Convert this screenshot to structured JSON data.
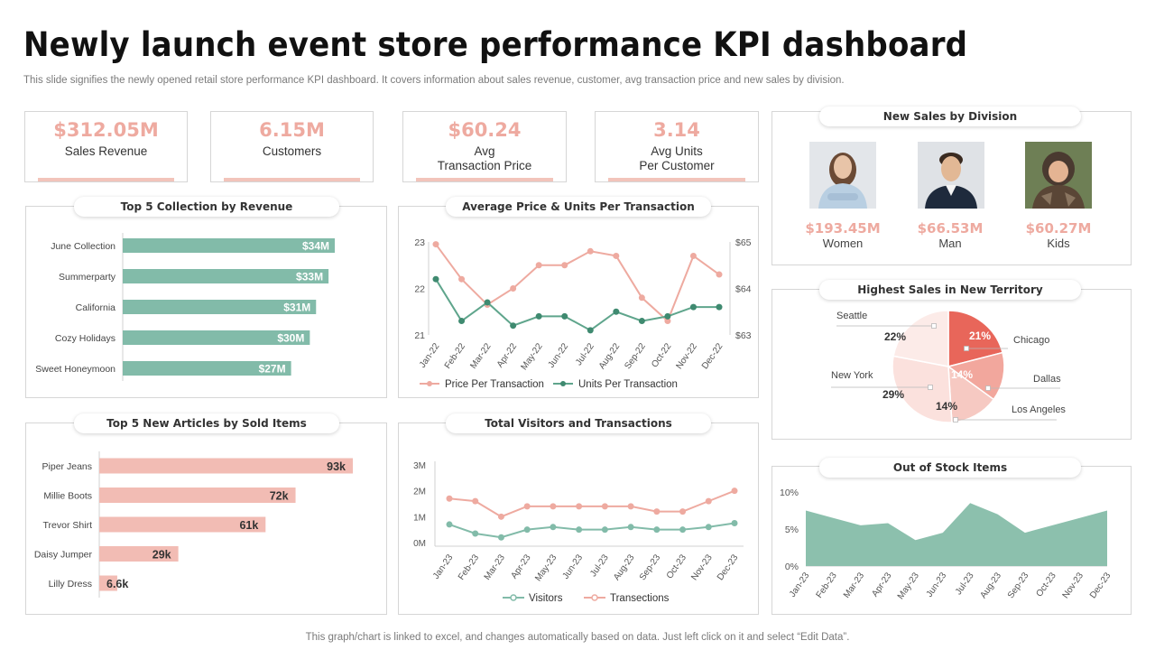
{
  "header": {
    "title": "Newly launch event store performance KPI dashboard",
    "subtitle": "This slide signifies the newly opened retail store performance KPI dashboard. It covers information about sales revenue, customer, avg transaction price and new sales by division."
  },
  "kpis": [
    {
      "value": "$312.05M",
      "label": "Sales Revenue"
    },
    {
      "value": "6.15M",
      "label": "Customers"
    },
    {
      "value": "$60.24",
      "label": "Avg\nTransaction Price"
    },
    {
      "value": "3.14",
      "label": "Avg Units\nPer Customer"
    }
  ],
  "panels": {
    "collections_title": "Top 5 Collection by Revenue",
    "avg_price_title": "Average Price & Units Per Transaction",
    "division_title": "New Sales by Division",
    "articles_title": "Top 5 New Articles by Sold Items",
    "visitors_title": "Total Visitors and Transactions",
    "territory_title": "Highest Sales in New Territory",
    "stock_title": "Out of Stock Items"
  },
  "division": [
    {
      "value": "$193.45M",
      "label": "Women"
    },
    {
      "value": "$66.53M",
      "label": "Man"
    },
    {
      "value": "$60.27M",
      "label": "Kids"
    }
  ],
  "footer": "This graph/chart is linked to excel,  and changes automatically based on data. Just left click on it and select “Edit Data”.",
  "colors": {
    "green": "#82bba9",
    "pink": "#f2bcb4",
    "dark_green": "#3f8a70",
    "salmon": "#eeaaa0",
    "red": "#e8665a"
  },
  "chart_data": [
    {
      "id": "collections",
      "type": "bar",
      "orientation": "horizontal",
      "categories": [
        "June Collection",
        "Summerparty",
        "California",
        "Cozy Holidays",
        "Sweet Honeymoon"
      ],
      "values": [
        34,
        33,
        31,
        30,
        27
      ],
      "labels": [
        "$34M",
        "$33M",
        "$31M",
        "$30M",
        "$27M"
      ]
    },
    {
      "id": "avg_price",
      "type": "line",
      "x": [
        "Jan-22",
        "Feb-22",
        "Mar-22",
        "Apr-22",
        "May-22",
        "Jun-22",
        "Jul-22",
        "Aug-22",
        "Sep-22",
        "Oct-22",
        "Nov-22",
        "Dec-22"
      ],
      "series": [
        {
          "name": "Price Per Transaction",
          "axis": "right",
          "values": [
            64.95,
            64.2,
            63.65,
            64.0,
            64.5,
            64.5,
            64.8,
            64.7,
            63.8,
            63.3,
            64.7,
            64.3
          ]
        },
        {
          "name": "Units Per Transaction",
          "axis": "left",
          "values": [
            22.2,
            21.3,
            21.7,
            21.2,
            21.4,
            21.4,
            21.1,
            21.5,
            21.3,
            21.4,
            21.6,
            21.6
          ]
        }
      ],
      "ylim": [
        21,
        23
      ],
      "yticks": [
        "21",
        "22",
        "23"
      ],
      "y2lim": [
        63,
        65
      ],
      "y2ticks": [
        "$63",
        "$64",
        "$65"
      ]
    },
    {
      "id": "articles",
      "type": "bar",
      "orientation": "horizontal",
      "categories": [
        "Piper Jeans",
        "Millie Boots",
        "Trevor Shirt",
        "Daisy Jumper",
        "Lilly Dress"
      ],
      "values": [
        93,
        72,
        61,
        29,
        6.6
      ],
      "labels": [
        "93k",
        "72k",
        "61k",
        "29k",
        "6.6k"
      ]
    },
    {
      "id": "visitors",
      "type": "line",
      "x": [
        "Jan-23",
        "Feb-23",
        "Mar-23",
        "Apr-23",
        "May-23",
        "Jun-23",
        "Jul-23",
        "Aug-23",
        "Sep-23",
        "Oct-23",
        "Nov-23",
        "Dec-23"
      ],
      "series": [
        {
          "name": "Visitors",
          "values": [
            0.7,
            0.35,
            0.2,
            0.5,
            0.6,
            0.5,
            0.5,
            0.6,
            0.5,
            0.5,
            0.6,
            0.75
          ]
        },
        {
          "name": "Transections",
          "values": [
            1.7,
            1.6,
            1.0,
            1.4,
            1.4,
            1.4,
            1.4,
            1.4,
            1.2,
            1.2,
            1.6,
            2.0
          ]
        }
      ],
      "ylim": [
        0,
        3
      ],
      "yticks": [
        "0M",
        "1M",
        "2M",
        "3M"
      ]
    },
    {
      "id": "territory",
      "type": "pie",
      "slices": [
        {
          "label": "Chicago",
          "value": 21,
          "text": "21%"
        },
        {
          "label": "Dallas",
          "value": 14,
          "text": "14%"
        },
        {
          "label": "Los Angeles",
          "value": 14,
          "text": "14%"
        },
        {
          "label": "New York",
          "value": 29,
          "text": "29%"
        },
        {
          "label": "Seattle",
          "value": 22,
          "text": "22%"
        }
      ]
    },
    {
      "id": "stock",
      "type": "area",
      "x": [
        "Jan-23",
        "Feb-23",
        "Mar-23",
        "Apr-23",
        "May-23",
        "Jun-23",
        "Jul-23",
        "Aug-23",
        "Sep-23",
        "Oct-23",
        "Nov-23",
        "Dec-23"
      ],
      "values": [
        7.5,
        6.5,
        5.5,
        5.8,
        3.5,
        4.5,
        8.5,
        7.0,
        4.5,
        5.5,
        6.5,
        7.5
      ],
      "ylim": [
        0,
        10
      ],
      "yticks": [
        "0%",
        "5%",
        "10%"
      ]
    }
  ]
}
